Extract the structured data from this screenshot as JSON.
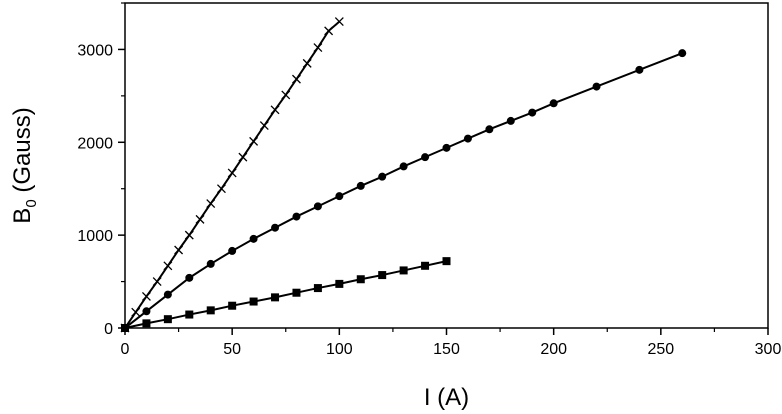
{
  "chart_data": {
    "type": "line",
    "title": "",
    "xlabel": "I (A)",
    "ylabel_main": "B",
    "ylabel_sub": "0",
    "ylabel_rest": " (Gauss)",
    "xlim": [
      0,
      300
    ],
    "ylim": [
      0,
      3500
    ],
    "xticks": [
      0,
      50,
      100,
      150,
      200,
      250,
      300
    ],
    "yticks": [
      0,
      1000,
      2000,
      3000
    ],
    "grid": false,
    "legend": "none",
    "series": [
      {
        "marker": "cross",
        "color": "#000000",
        "x": [
          0,
          5,
          10,
          15,
          20,
          25,
          30,
          35,
          40,
          45,
          50,
          55,
          60,
          65,
          70,
          75,
          80,
          85,
          90,
          95,
          100
        ],
        "y": [
          0,
          170,
          340,
          500,
          670,
          840,
          1000,
          1170,
          1340,
          1500,
          1670,
          1840,
          2010,
          2180,
          2350,
          2510,
          2680,
          2850,
          3020,
          3200,
          3300
        ]
      },
      {
        "marker": "circle",
        "color": "#000000",
        "x": [
          0,
          10,
          20,
          30,
          40,
          50,
          60,
          70,
          80,
          90,
          100,
          110,
          120,
          130,
          140,
          150,
          160,
          170,
          180,
          190,
          200,
          220,
          240,
          260
        ],
        "y": [
          0,
          180,
          360,
          540,
          690,
          830,
          960,
          1080,
          1200,
          1310,
          1420,
          1530,
          1630,
          1740,
          1840,
          1940,
          2040,
          2140,
          2230,
          2320,
          2420,
          2600,
          2780,
          2960
        ]
      },
      {
        "marker": "square",
        "color": "#000000",
        "x": [
          0,
          10,
          20,
          30,
          40,
          50,
          60,
          70,
          80,
          90,
          100,
          110,
          120,
          130,
          140,
          150
        ],
        "y": [
          0,
          50,
          95,
          145,
          190,
          240,
          285,
          330,
          380,
          430,
          475,
          525,
          570,
          620,
          670,
          720
        ]
      }
    ]
  }
}
